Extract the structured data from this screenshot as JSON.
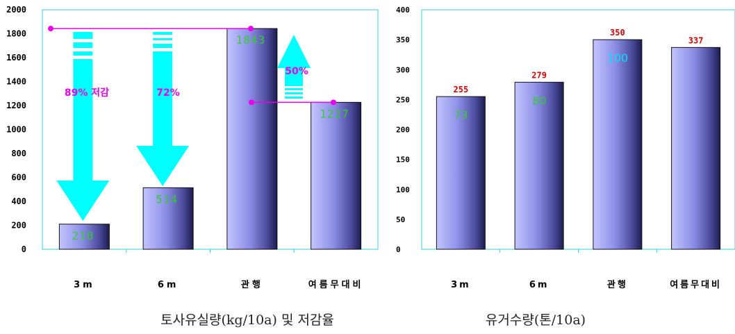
{
  "chart_data": [
    {
      "type": "bar",
      "title": "토사유실량(kg/10a) 및 저감율",
      "categories": [
        "3m",
        "6m",
        "관행",
        "여름무대비"
      ],
      "values": [
        210,
        514,
        1843,
        1227
      ],
      "value_labels": [
        "210",
        "514",
        "1843",
        "1227"
      ],
      "ylim": [
        0,
        2000
      ],
      "yticks": [
        "0",
        "200",
        "400",
        "600",
        "800",
        "1000",
        "1200",
        "1400",
        "1600",
        "1800",
        "2000"
      ],
      "grid": false,
      "annotations": [
        {
          "text": "89% 저감",
          "from": "관행",
          "to": "3m"
        },
        {
          "text": "72%",
          "from": "관행",
          "to": "6m"
        },
        {
          "text": "50%",
          "from": "여름무대비",
          "to": "관행"
        }
      ]
    },
    {
      "type": "bar",
      "title": "유거수량(톤/10a)",
      "categories": [
        "3m",
        "6m",
        "관행",
        "여름무대비"
      ],
      "values": [
        255,
        279,
        350,
        337
      ],
      "value_labels": [
        "255",
        "279",
        "350",
        "337"
      ],
      "inner_labels": [
        "73",
        "80",
        "100",
        ""
      ],
      "ylim": [
        0,
        400
      ],
      "yticks": [
        "0",
        "50",
        "100",
        "150",
        "200",
        "250",
        "300",
        "350",
        "400"
      ],
      "grid": false
    }
  ],
  "colors": {
    "axis_frame": "#2ad6dc",
    "bar_light": "#b9bbff",
    "bar_dark": "#1c1c50",
    "arrow": "#00ffff",
    "pink": "#ee00ee",
    "value_label_red": "#e00000",
    "inner_green": "#33cc33",
    "inner_cyan": "#00e0ff"
  }
}
